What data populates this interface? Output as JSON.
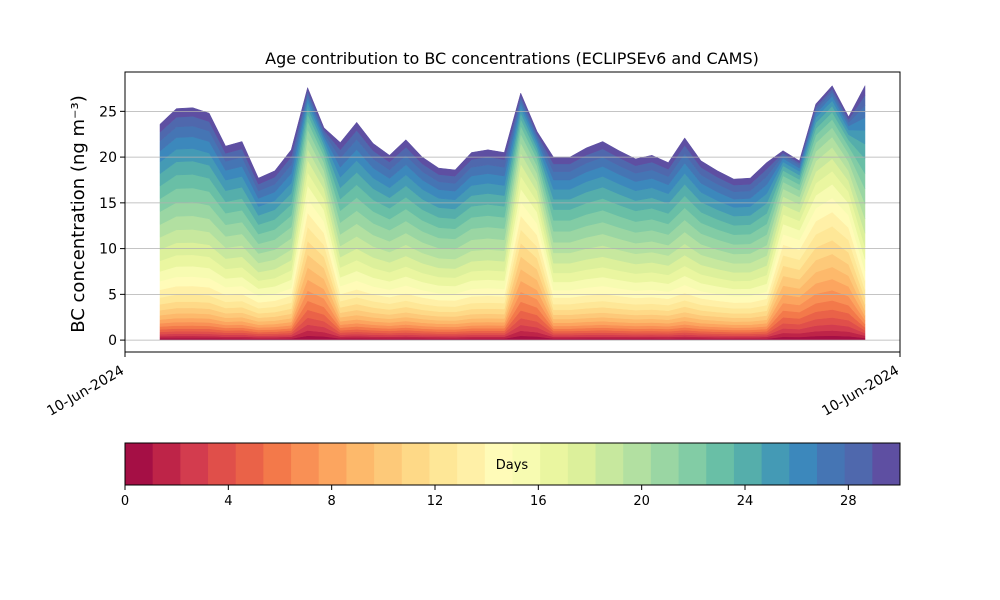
{
  "chart_data": {
    "type": "area",
    "stacked": true,
    "title": "Age contribution to BC concentrations (ECLIPSEv6 and CAMS)",
    "ylabel": "BC concentration (ng m⁻³)",
    "xlabel": "",
    "x_tick_labels": [
      "10-Jun-2024",
      "10-Jun-2024"
    ],
    "yticks": [
      0,
      5,
      10,
      15,
      20,
      25
    ],
    "ylim": [
      -1.3,
      29.3
    ],
    "grid": "horizontal",
    "sample_index": [
      0,
      1,
      2,
      3,
      4,
      5,
      6,
      7,
      8,
      9,
      10,
      11,
      12,
      13,
      14,
      15,
      16,
      17,
      18,
      19,
      20,
      21,
      22,
      23,
      24,
      25,
      26,
      27,
      28,
      29,
      30,
      31,
      32,
      33,
      34,
      35,
      36,
      37,
      38,
      39,
      40,
      41,
      42,
      43
    ],
    "totals": [
      23.6,
      25.3,
      25.4,
      24.8,
      21.2,
      21.7,
      17.7,
      18.5,
      20.8,
      27.6,
      23.2,
      21.6,
      23.8,
      21.5,
      20.2,
      21.9,
      20.0,
      18.8,
      18.6,
      20.5,
      20.8,
      20.5,
      27.0,
      22.8,
      20.0,
      20.0,
      21.0,
      21.7,
      20.7,
      19.8,
      20.2,
      19.4,
      22.1,
      19.6,
      18.5,
      17.6,
      17.7,
      19.4,
      20.7,
      19.6,
      25.8,
      27.8,
      24.4,
      27.8
    ],
    "age_fractions": {
      "description": "share of total per age bin, by sample",
      "bins_days": [
        0,
        2,
        4,
        6,
        8,
        10,
        12,
        14,
        16,
        18,
        20,
        22,
        24,
        26,
        28,
        30
      ]
    },
    "colorbar": {
      "label": "Days",
      "ticks": [
        0,
        4,
        8,
        12,
        16,
        20,
        24,
        28
      ],
      "min": 0,
      "max": 30,
      "colors": [
        "#a50f45",
        "#be2448",
        "#d33c4e",
        "#e04f4a",
        "#ea6248",
        "#f3794a",
        "#f99055",
        "#fca55f",
        "#fdb96b",
        "#fdc979",
        "#fed987",
        "#fee797",
        "#fff0a7",
        "#fffbb8",
        "#f7fbb1",
        "#eaf6a0",
        "#dcf09b",
        "#c7e89e",
        "#b2e0a1",
        "#9ad6a3",
        "#82cca5",
        "#69bfa6",
        "#55aeab",
        "#449ab5",
        "#3c88bc",
        "#4575b4",
        "#4f68ad",
        "#5e4fa2"
      ]
    }
  }
}
